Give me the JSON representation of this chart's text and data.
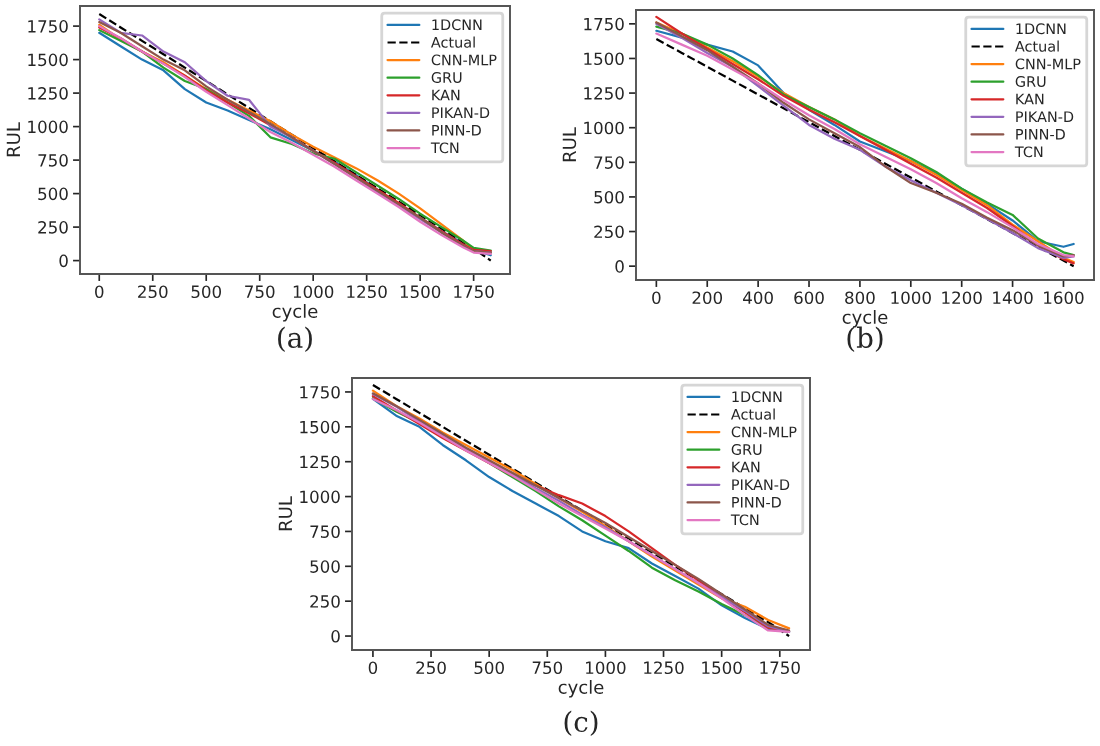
{
  "chart_data": [
    {
      "type": "line",
      "xlabel": "cycle",
      "ylabel": "RUL",
      "annotations": [
        "(a)"
      ],
      "legend": "top right",
      "grid": false,
      "xlim": [
        -90,
        1920
      ],
      "xticks": [
        0,
        250,
        500,
        750,
        1000,
        1250,
        1500,
        1750
      ],
      "ylim": [
        -100,
        1900
      ],
      "yticks": [
        0,
        250,
        500,
        750,
        1000,
        1250,
        1500,
        1750
      ],
      "x": [
        0,
        100,
        200,
        300,
        400,
        500,
        600,
        700,
        800,
        900,
        1000,
        1100,
        1200,
        1300,
        1400,
        1500,
        1600,
        1700,
        1750,
        1830
      ],
      "series": [
        {
          "name": "1DCNN",
          "color": "#1f77b4",
          "values": [
            1700,
            1600,
            1500,
            1420,
            1280,
            1180,
            1120,
            1050,
            980,
            900,
            820,
            740,
            640,
            530,
            420,
            320,
            220,
            130,
            80,
            40
          ]
        },
        {
          "name": "Actual",
          "color": "#000000",
          "line_style": "dashed",
          "values": [
            1840,
            1740,
            1640,
            1540,
            1440,
            1340,
            1240,
            1140,
            1040,
            940,
            840,
            740,
            640,
            540,
            440,
            340,
            240,
            140,
            90,
            0
          ]
        },
        {
          "name": "CNN-MLP",
          "color": "#ff7f0e",
          "values": [
            1760,
            1650,
            1560,
            1480,
            1380,
            1280,
            1200,
            1120,
            1040,
            940,
            850,
            770,
            690,
            600,
            500,
            390,
            270,
            150,
            80,
            60
          ]
        },
        {
          "name": "GRU",
          "color": "#2ca02c",
          "values": [
            1720,
            1640,
            1560,
            1440,
            1340,
            1280,
            1180,
            1080,
            920,
            870,
            800,
            760,
            660,
            560,
            460,
            350,
            250,
            150,
            95,
            75
          ]
        },
        {
          "name": "KAN",
          "color": "#d62728",
          "values": [
            1740,
            1660,
            1560,
            1470,
            1380,
            1270,
            1180,
            1100,
            1010,
            920,
            820,
            730,
            630,
            530,
            430,
            320,
            220,
            120,
            80,
            70
          ]
        },
        {
          "name": "PIKAN-D",
          "color": "#9467bd",
          "values": [
            1800,
            1700,
            1680,
            1560,
            1480,
            1340,
            1230,
            1200,
            1000,
            920,
            820,
            720,
            620,
            510,
            410,
            310,
            210,
            110,
            70,
            60
          ]
        },
        {
          "name": "PINN-D",
          "color": "#8c564b",
          "values": [
            1780,
            1700,
            1600,
            1500,
            1420,
            1300,
            1200,
            1110,
            1020,
            920,
            820,
            720,
            620,
            520,
            420,
            320,
            210,
            110,
            70,
            60
          ]
        },
        {
          "name": "TCN",
          "color": "#e377c2",
          "values": [
            1750,
            1660,
            1560,
            1470,
            1370,
            1260,
            1160,
            1060,
            960,
            880,
            790,
            700,
            600,
            500,
            400,
            290,
            190,
            100,
            60,
            50
          ]
        }
      ]
    },
    {
      "type": "line",
      "xlabel": "cycle",
      "ylabel": "RUL",
      "annotations": [
        "(b)"
      ],
      "legend": "top right",
      "grid": false,
      "xlim": [
        -80,
        1720
      ],
      "xticks": [
        0,
        200,
        400,
        600,
        800,
        1000,
        1200,
        1400,
        1600
      ],
      "ylim": [
        -100,
        1850
      ],
      "yticks": [
        0,
        250,
        500,
        750,
        1000,
        1250,
        1500,
        1750
      ],
      "x": [
        0,
        100,
        200,
        300,
        400,
        500,
        600,
        700,
        800,
        900,
        1000,
        1100,
        1200,
        1300,
        1400,
        1500,
        1600,
        1640
      ],
      "series": [
        {
          "name": "1DCNN",
          "color": "#1f77b4",
          "values": [
            1700,
            1650,
            1600,
            1550,
            1450,
            1250,
            1130,
            1020,
            900,
            830,
            760,
            670,
            560,
            450,
            330,
            180,
            140,
            160
          ]
        },
        {
          "name": "Actual",
          "color": "#000000",
          "line_style": "dashed",
          "values": [
            1640,
            1540,
            1440,
            1340,
            1240,
            1140,
            1040,
            940,
            840,
            740,
            640,
            540,
            440,
            340,
            240,
            140,
            40,
            0
          ]
        },
        {
          "name": "CNN-MLP",
          "color": "#ff7f0e",
          "values": [
            1760,
            1680,
            1580,
            1480,
            1370,
            1250,
            1150,
            1060,
            940,
            850,
            760,
            660,
            550,
            440,
            300,
            180,
            60,
            30
          ]
        },
        {
          "name": "GRU",
          "color": "#2ca02c",
          "values": [
            1730,
            1680,
            1600,
            1500,
            1380,
            1240,
            1150,
            1060,
            960,
            870,
            780,
            680,
            560,
            460,
            370,
            200,
            100,
            80
          ]
        },
        {
          "name": "KAN",
          "color": "#d62728",
          "values": [
            1800,
            1680,
            1570,
            1460,
            1350,
            1230,
            1130,
            1040,
            940,
            840,
            740,
            640,
            530,
            420,
            290,
            150,
            50,
            20
          ]
        },
        {
          "name": "PIKAN-D",
          "color": "#9467bd",
          "values": [
            1750,
            1650,
            1540,
            1440,
            1300,
            1160,
            1020,
            920,
            840,
            720,
            620,
            530,
            440,
            340,
            240,
            130,
            60,
            70
          ]
        },
        {
          "name": "PINN-D",
          "color": "#8c564b",
          "values": [
            1760,
            1660,
            1560,
            1440,
            1320,
            1180,
            1060,
            960,
            860,
            720,
            600,
            530,
            450,
            350,
            260,
            150,
            70,
            80
          ]
        },
        {
          "name": "TCN",
          "color": "#e377c2",
          "values": [
            1680,
            1600,
            1520,
            1420,
            1320,
            1200,
            1090,
            990,
            880,
            790,
            700,
            600,
            490,
            390,
            280,
            160,
            80,
            70
          ]
        }
      ]
    },
    {
      "type": "line",
      "xlabel": "cycle",
      "ylabel": "RUL",
      "annotations": [
        "(c)"
      ],
      "legend": "top right",
      "grid": false,
      "xlim": [
        -90,
        1880
      ],
      "xticks": [
        0,
        250,
        500,
        750,
        1000,
        1250,
        1500,
        1750
      ],
      "ylim": [
        -100,
        1850
      ],
      "yticks": [
        0,
        250,
        500,
        750,
        1000,
        1250,
        1500,
        1750
      ],
      "x": [
        0,
        100,
        200,
        300,
        400,
        500,
        600,
        700,
        800,
        900,
        1000,
        1100,
        1200,
        1300,
        1400,
        1500,
        1600,
        1700,
        1790
      ],
      "series": [
        {
          "name": "1DCNN",
          "color": "#1f77b4",
          "values": [
            1700,
            1580,
            1500,
            1370,
            1260,
            1140,
            1040,
            950,
            860,
            750,
            680,
            630,
            520,
            430,
            340,
            220,
            130,
            50,
            30
          ]
        },
        {
          "name": "Actual",
          "color": "#000000",
          "line_style": "dashed",
          "values": [
            1800,
            1700,
            1600,
            1500,
            1400,
            1300,
            1200,
            1100,
            1000,
            900,
            800,
            700,
            600,
            500,
            400,
            300,
            200,
            100,
            0
          ]
        },
        {
          "name": "CNN-MLP",
          "color": "#ff7f0e",
          "values": [
            1760,
            1650,
            1560,
            1460,
            1370,
            1280,
            1190,
            1090,
            990,
            890,
            790,
            680,
            570,
            470,
            370,
            270,
            210,
            115,
            55
          ]
        },
        {
          "name": "GRU",
          "color": "#2ca02c",
          "values": [
            1705,
            1610,
            1530,
            1430,
            1340,
            1240,
            1140,
            1040,
            930,
            830,
            720,
            610,
            490,
            400,
            320,
            230,
            150,
            60,
            30
          ]
        },
        {
          "name": "KAN",
          "color": "#d62728",
          "values": [
            1720,
            1620,
            1520,
            1420,
            1330,
            1240,
            1150,
            1080,
            1010,
            950,
            860,
            750,
            630,
            510,
            400,
            280,
            170,
            60,
            30
          ]
        },
        {
          "name": "PIKAN-D",
          "color": "#9467bd",
          "values": [
            1735,
            1645,
            1540,
            1440,
            1340,
            1250,
            1160,
            1060,
            970,
            870,
            780,
            680,
            580,
            480,
            380,
            280,
            180,
            70,
            30
          ]
        },
        {
          "name": "PINN-D",
          "color": "#8c564b",
          "values": [
            1740,
            1650,
            1550,
            1450,
            1350,
            1260,
            1170,
            1080,
            990,
            900,
            810,
            710,
            610,
            510,
            410,
            300,
            190,
            80,
            40
          ]
        },
        {
          "name": "TCN",
          "color": "#e377c2",
          "values": [
            1700,
            1620,
            1530,
            1430,
            1330,
            1240,
            1150,
            1050,
            950,
            860,
            770,
            680,
            580,
            480,
            380,
            270,
            150,
            40,
            30
          ]
        }
      ]
    }
  ]
}
